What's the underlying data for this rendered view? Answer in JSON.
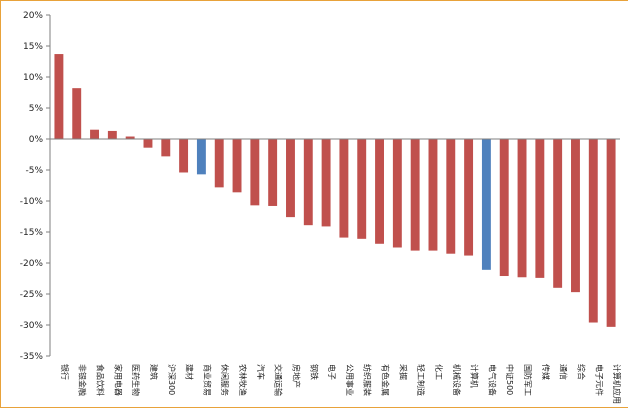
{
  "chart_data": {
    "type": "bar",
    "title": "",
    "xlabel": "",
    "ylabel": "",
    "ylim": [
      -35,
      20
    ],
    "ytick_step": 5,
    "y_tick_format": "percent",
    "grid": false,
    "legend": "none",
    "colors": {
      "default": "#C0504D",
      "highlight": "#4F81BD",
      "frame": "#E8A23A"
    },
    "highlight_indices": [
      8,
      24
    ],
    "categories": [
      "银行",
      "非银金融",
      "食品饮料",
      "家用电器",
      "医药生物",
      "建筑",
      "沪深300",
      "建材",
      "商业贸易",
      "休闲服务",
      "农林牧渔",
      "汽车",
      "交通运输",
      "房地产",
      "钢铁",
      "电子",
      "公用事业",
      "纺织服装",
      "有色金属",
      "采掘",
      "轻工制造",
      "化工",
      "机械设备",
      "计算机",
      "电气设备",
      "中证500",
      "国防军工",
      "传媒",
      "通信",
      "综合",
      "电子元件",
      "计算机应用"
    ],
    "values": [
      13.7,
      8.2,
      1.5,
      1.3,
      0.4,
      -1.4,
      -2.8,
      -5.4,
      -5.7,
      -7.8,
      -8.6,
      -10.7,
      -10.8,
      -12.6,
      -13.9,
      -14.1,
      -15.9,
      -16.1,
      -16.9,
      -17.5,
      -18.0,
      -18.0,
      -18.5,
      -18.8,
      -21.1,
      -22.1,
      -22.3,
      -22.4,
      -24.0,
      -24.7,
      -29.6,
      -30.3
    ]
  }
}
